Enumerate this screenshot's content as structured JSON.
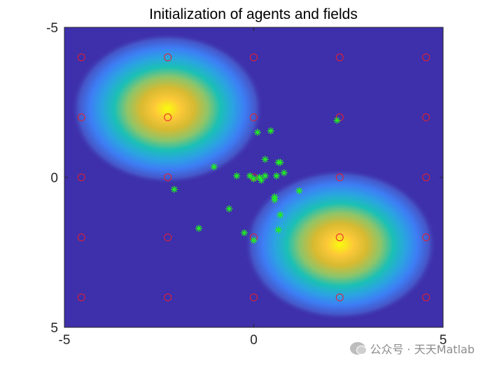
{
  "chart_data": {
    "type": "scatter",
    "title": "Initialization of agents and fields",
    "xlabel": "",
    "ylabel": "",
    "xlim": [
      -5,
      5
    ],
    "ylim": [
      -5,
      5
    ],
    "y_direction": "reversed",
    "xticks": [
      -5,
      0,
      5
    ],
    "yticks": [
      -5,
      0,
      5
    ],
    "background": {
      "type": "heatmap",
      "colormap": "parula",
      "peaks": [
        [
          -2.27,
          -2.27
        ],
        [
          2.27,
          2.27
        ]
      ]
    },
    "series": [
      {
        "marker": "circle",
        "color": "#e8202a",
        "points": [
          [
            -4.55,
            -4.0
          ],
          [
            -2.27,
            -4.0
          ],
          [
            0,
            -4.0
          ],
          [
            2.27,
            -4.0
          ],
          [
            4.55,
            -4.0
          ],
          [
            -4.55,
            -2.0
          ],
          [
            -2.27,
            -2.0
          ],
          [
            0,
            -2.0
          ],
          [
            2.27,
            -2.0
          ],
          [
            4.55,
            -2.0
          ],
          [
            -4.55,
            0
          ],
          [
            -2.27,
            0
          ],
          [
            0,
            0
          ],
          [
            2.27,
            0
          ],
          [
            4.55,
            0
          ],
          [
            -4.55,
            2.0
          ],
          [
            -2.27,
            2.0
          ],
          [
            0,
            2.0
          ],
          [
            2.27,
            2.0
          ],
          [
            4.55,
            2.0
          ],
          [
            -4.55,
            4.0
          ],
          [
            -2.27,
            4.0
          ],
          [
            0,
            4.0
          ],
          [
            2.27,
            4.0
          ],
          [
            4.55,
            4.0
          ]
        ]
      },
      {
        "marker": "asterisk",
        "color": "#22ee22",
        "points": [
          [
            2.2,
            -1.9
          ],
          [
            0.1,
            -1.5
          ],
          [
            0.45,
            -1.55
          ],
          [
            0.3,
            -0.6
          ],
          [
            0.65,
            -0.5
          ],
          [
            0.7,
            -0.5
          ],
          [
            -1.05,
            -0.35
          ],
          [
            0.8,
            -0.15
          ],
          [
            -0.45,
            -0.05
          ],
          [
            -0.1,
            -0.05
          ],
          [
            0.3,
            -0.05
          ],
          [
            0.6,
            -0.05
          ],
          [
            0.15,
            0
          ],
          [
            0.0,
            0.05
          ],
          [
            0.2,
            0.1
          ],
          [
            -2.1,
            0.4
          ],
          [
            1.2,
            0.45
          ],
          [
            0.55,
            0.65
          ],
          [
            0.55,
            0.75
          ],
          [
            -0.65,
            1.05
          ],
          [
            0.7,
            1.25
          ],
          [
            -1.45,
            1.7
          ],
          [
            0.65,
            1.75
          ],
          [
            -0.25,
            1.85
          ],
          [
            0.0,
            2.1
          ]
        ]
      }
    ]
  },
  "watermark": {
    "text": "公众号 · 天天Matlab",
    "icon": "wechat-icon"
  }
}
